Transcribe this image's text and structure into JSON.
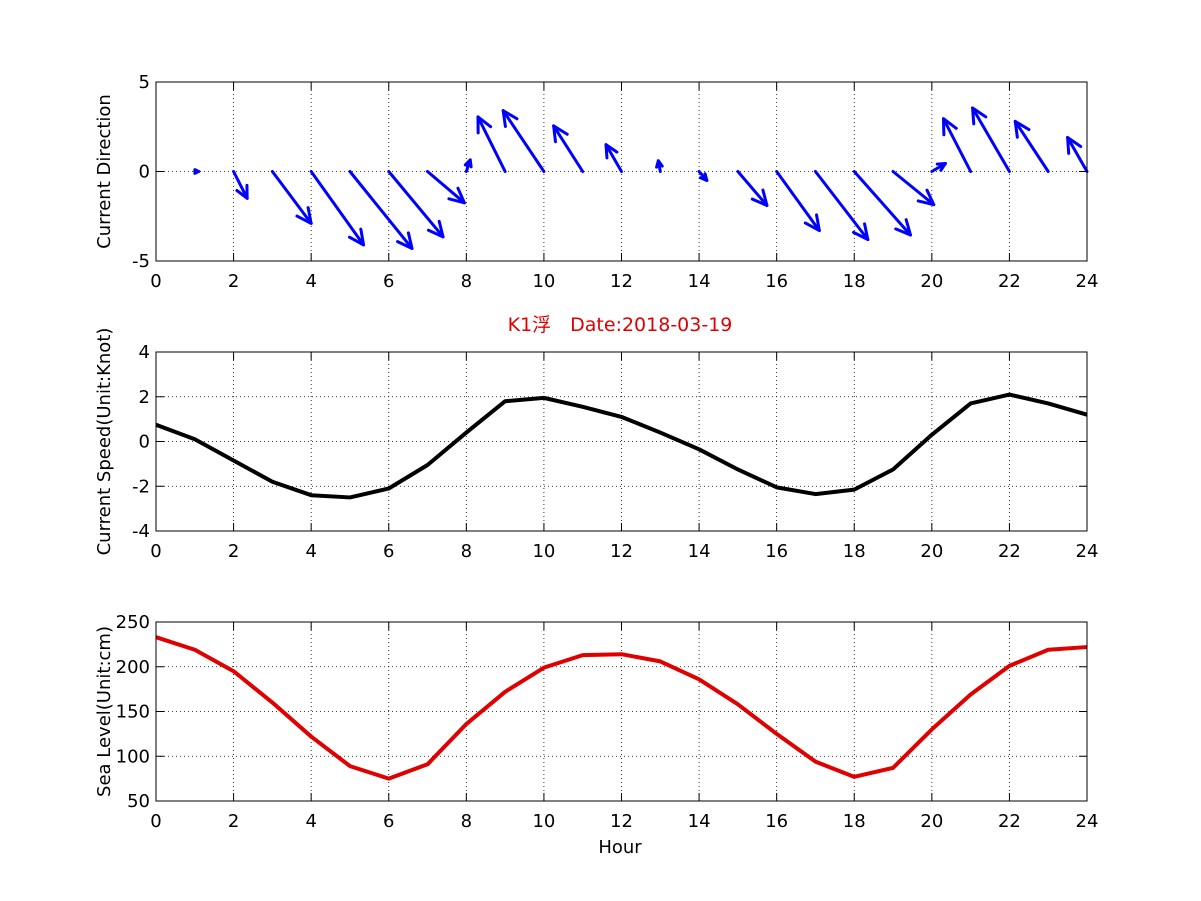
{
  "figure": {
    "title": "K1浮　Date:2018-03-19",
    "xlabel": "Hour",
    "title_color": "#e00000"
  },
  "chart_data": [
    {
      "type": "quiver",
      "ylabel": "Current Direction",
      "xlim": [
        0,
        24
      ],
      "ylim": [
        -5,
        5
      ],
      "xticks": [
        0,
        2,
        4,
        6,
        8,
        10,
        12,
        14,
        16,
        18,
        20,
        22,
        24
      ],
      "yticks": [
        -5,
        0,
        5
      ],
      "grid": true,
      "color": "#0000ff",
      "x": [
        1,
        2,
        3,
        4,
        5,
        6,
        7,
        8,
        9,
        10,
        11,
        12,
        13,
        14,
        15,
        16,
        17,
        18,
        19,
        20,
        21,
        22,
        23,
        24
      ],
      "u": [
        0.1,
        0.35,
        1.0,
        1.35,
        1.6,
        1.4,
        0.95,
        0.1,
        -0.7,
        -1.05,
        -0.75,
        -0.4,
        -0.05,
        0.2,
        0.75,
        1.1,
        1.35,
        1.45,
        1.05,
        0.35,
        -0.7,
        -0.95,
        -0.85,
        -0.5
      ],
      "v": [
        0,
        -1.5,
        -2.9,
        -4.1,
        -4.3,
        -3.65,
        -1.75,
        0.65,
        3.05,
        3.4,
        2.55,
        1.5,
        0.6,
        -0.5,
        -1.9,
        -3.3,
        -3.8,
        -3.55,
        -1.85,
        0.45,
        2.95,
        3.55,
        2.8,
        1.9
      ]
    },
    {
      "type": "line",
      "ylabel": "Current Speed(Unit:Knot)",
      "xlim": [
        0,
        24
      ],
      "ylim": [
        -4,
        4
      ],
      "xticks": [
        0,
        2,
        4,
        6,
        8,
        10,
        12,
        14,
        16,
        18,
        20,
        22,
        24
      ],
      "yticks": [
        -4,
        -2,
        0,
        2,
        4
      ],
      "grid": true,
      "color": "#000000",
      "x": [
        0,
        1,
        2,
        3,
        4,
        5,
        6,
        7,
        8,
        9,
        10,
        11,
        12,
        13,
        14,
        15,
        16,
        17,
        18,
        19,
        20,
        21,
        22,
        23,
        24
      ],
      "y": [
        0.75,
        0.1,
        -0.85,
        -1.8,
        -2.4,
        -2.5,
        -2.1,
        -1.05,
        0.4,
        1.8,
        1.95,
        1.55,
        1.1,
        0.4,
        -0.35,
        -1.25,
        -2.05,
        -2.35,
        -2.15,
        -1.25,
        0.3,
        1.7,
        2.1,
        1.7,
        1.2
      ]
    },
    {
      "type": "line",
      "ylabel": "Sea Level(Unit:cm)",
      "xlim": [
        0,
        24
      ],
      "ylim": [
        50,
        250
      ],
      "xticks": [
        0,
        2,
        4,
        6,
        8,
        10,
        12,
        14,
        16,
        18,
        20,
        22,
        24
      ],
      "yticks": [
        50,
        100,
        150,
        200,
        250
      ],
      "grid": true,
      "color": "#e00000",
      "x": [
        0,
        1,
        2,
        3,
        4,
        5,
        6,
        7,
        8,
        9,
        10,
        11,
        12,
        13,
        14,
        15,
        16,
        17,
        18,
        19,
        20,
        21,
        22,
        23,
        24
      ],
      "y": [
        233,
        219,
        195,
        160,
        122,
        89,
        75,
        91,
        136,
        172,
        199,
        213,
        214,
        206,
        186,
        158,
        125,
        94,
        77,
        87,
        130,
        169,
        201,
        219,
        222
      ]
    }
  ]
}
